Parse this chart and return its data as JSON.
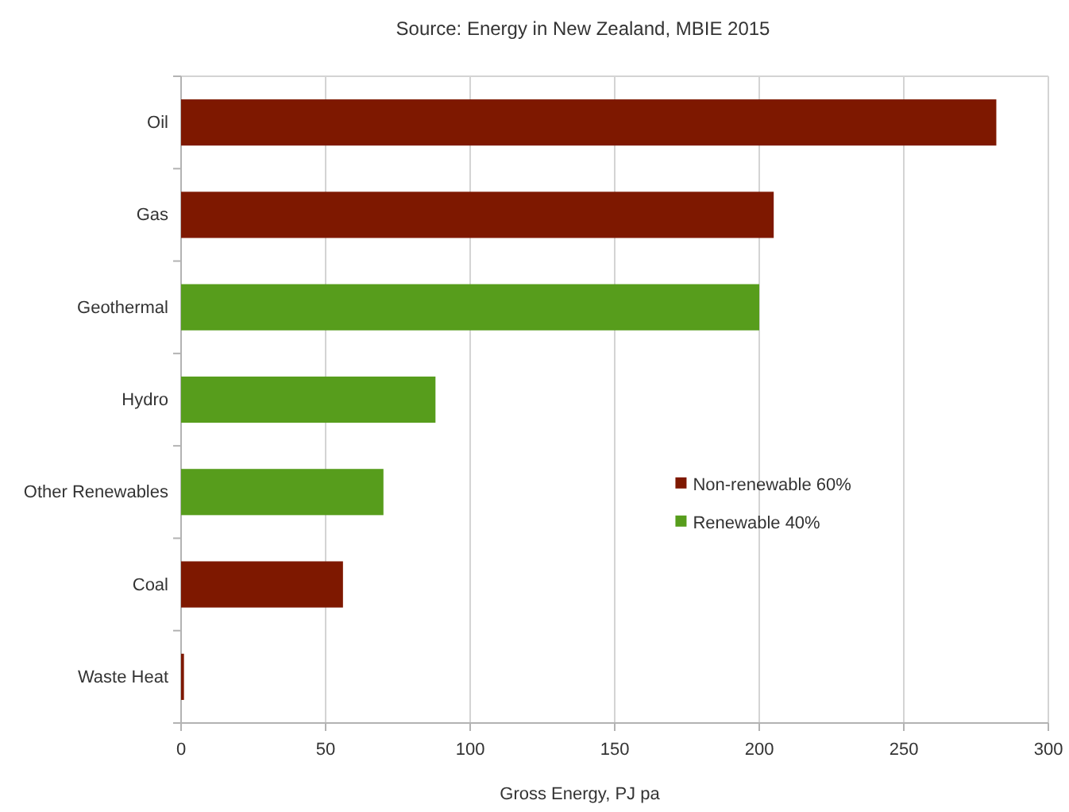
{
  "chart_data": {
    "type": "bar",
    "orientation": "horizontal",
    "stacked": true,
    "title": "Source: Energy in New Zealand, MBIE 2015",
    "xlabel": "Gross Energy, PJ pa",
    "categories": [
      "Oil",
      "Gas",
      "Geothermal",
      "Hydro",
      "Other Renewables",
      "Coal",
      "Waste Heat"
    ],
    "series": [
      {
        "name": "Non-renewable 60%",
        "color": "#7e1800",
        "values": [
          282,
          205,
          null,
          null,
          null,
          56,
          1
        ]
      },
      {
        "name": "Renewable 40%",
        "color": "#579d1c",
        "values": [
          null,
          null,
          200,
          88,
          70,
          null,
          null
        ]
      }
    ],
    "xlim": [
      0,
      300
    ],
    "xticks": [
      0,
      50,
      100,
      150,
      200,
      250,
      300
    ],
    "grid": "x",
    "legend": "right"
  }
}
